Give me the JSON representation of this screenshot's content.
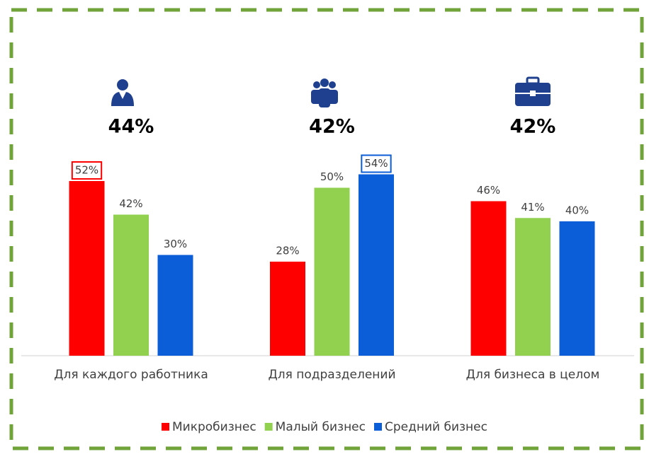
{
  "chart_data": {
    "type": "bar",
    "categories": [
      "Для каждого работника",
      "Для подразделений",
      "Для бизнеса в целом"
    ],
    "series": [
      {
        "name": "Микробизнес",
        "color": "#ff0000",
        "values": [
          52,
          28,
          46
        ],
        "value_labels": [
          "52%",
          "28%",
          "46%"
        ]
      },
      {
        "name": "Малый бизнес",
        "color": "#92d050",
        "values": [
          42,
          50,
          41
        ],
        "value_labels": [
          "42%",
          "50%",
          "41%"
        ]
      },
      {
        "name": "Средний бизнес",
        "color": "#0b5ed7",
        "values": [
          30,
          54,
          40
        ],
        "value_labels": [
          "30%",
          "54%",
          "40%"
        ]
      }
    ],
    "group_values": [
      44,
      42,
      42
    ],
    "group_value_labels": [
      "44%",
      "42%",
      "42%"
    ],
    "highlighted": [
      {
        "series": 0,
        "category": 0
      },
      {
        "series": 2,
        "category": 1
      }
    ],
    "legend": "bottom"
  }
}
